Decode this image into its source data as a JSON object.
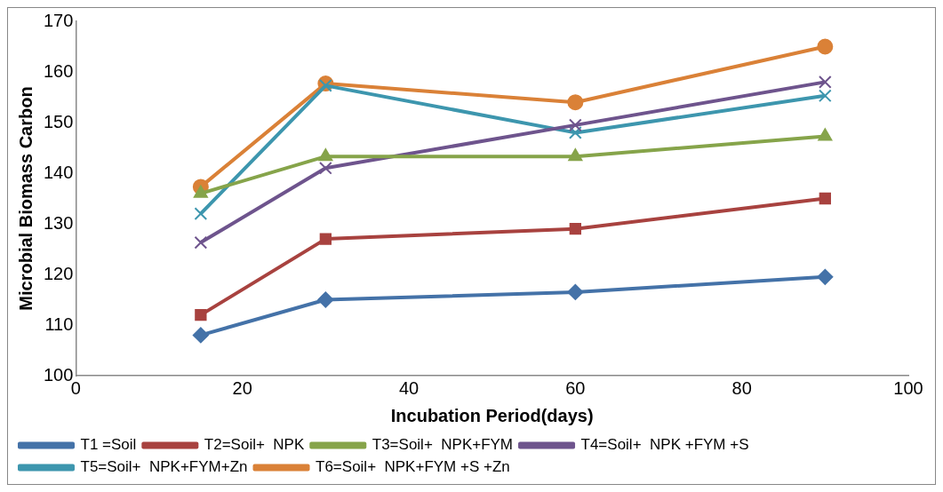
{
  "chart_data": {
    "type": "line",
    "xlabel": "Incubation Period(days)",
    "ylabel": "Microbial Biomass Carbon",
    "x": [
      15,
      30,
      60,
      90
    ],
    "series": [
      {
        "name": "T1 =Soil",
        "color": "#4472a8",
        "marker": "diamond",
        "values": [
          108,
          115,
          116.5,
          119.5
        ]
      },
      {
        "name": "T2=Soil+  NPK",
        "color": "#a8423f",
        "marker": "square",
        "values": [
          112,
          127,
          129,
          135
        ]
      },
      {
        "name": "T3=Soil+  NPK+FYM",
        "color": "#86a44a",
        "marker": "triangle",
        "values": [
          136,
          143.3,
          143.3,
          147.3
        ]
      },
      {
        "name": "T4=Soil+  NPK +FYM +S",
        "color": "#6e548d",
        "marker": "cross",
        "values": [
          126.3,
          141,
          149.5,
          158
        ]
      },
      {
        "name": "T5=Soil+  NPK+FYM+Zn",
        "color": "#3d96ae",
        "marker": "cross",
        "values": [
          132,
          157.3,
          148,
          155.3
        ]
      },
      {
        "name": "T6=Soil+  NPK+FYM +S +Zn",
        "color": "#da8137",
        "marker": "circle",
        "values": [
          137.3,
          157.7,
          154,
          165
        ]
      }
    ],
    "xlim": [
      0,
      100
    ],
    "xticks": [
      0,
      20,
      40,
      60,
      80,
      100
    ],
    "ylim": [
      100,
      170
    ],
    "yticks": [
      100,
      110,
      120,
      130,
      140,
      150,
      160,
      170
    ],
    "grid": false,
    "legend": "bottom"
  }
}
